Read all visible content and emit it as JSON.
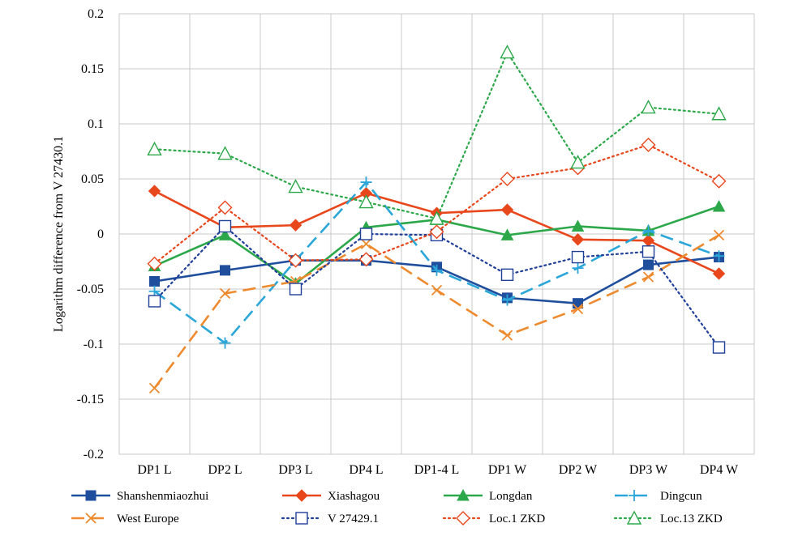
{
  "chart_data": {
    "type": "line",
    "title": "",
    "xlabel": "",
    "ylabel": "Logarithm difference from V 27430.1",
    "categories": [
      "DP1 L",
      "DP2 L",
      "DP3 L",
      "DP4 L",
      "DP1-4 L",
      "DP1 W",
      "DP2 W",
      "DP3 W",
      "DP4 W"
    ],
    "ylim": [
      -0.2,
      0.2
    ],
    "yticks": [
      -0.2,
      -0.15,
      -0.1,
      -0.05,
      0,
      0.05,
      0.1,
      0.15,
      0.2
    ],
    "ytick_labels": [
      "-0.2",
      "-0.15",
      "-0.1",
      "-0.05",
      "0",
      "0.05",
      "0.1",
      "0.15",
      "0.2"
    ],
    "grid": true,
    "legend_position": "bottom",
    "series": [
      {
        "name": "Shanshenmiaozhui",
        "color": "#1f4e9c",
        "dash": "solid",
        "marker": "square-filled",
        "values": [
          -0.043,
          -0.033,
          -0.024,
          -0.024,
          -0.03,
          -0.058,
          -0.063,
          -0.028,
          -0.021
        ]
      },
      {
        "name": "Xiashagou",
        "color": "#e8471c",
        "dash": "solid",
        "marker": "diamond-filled",
        "values": [
          0.039,
          0.006,
          0.008,
          0.037,
          0.019,
          0.022,
          -0.005,
          -0.006,
          -0.036
        ]
      },
      {
        "name": "Longdan",
        "color": "#2ca84a",
        "dash": "solid",
        "marker": "triangle-filled",
        "values": [
          -0.029,
          -0.001,
          -0.045,
          0.006,
          0.013,
          -0.001,
          0.007,
          0.003,
          0.025
        ]
      },
      {
        "name": "Dingcun",
        "color": "#2aa6d8",
        "dash": "longdash",
        "marker": "plus",
        "values": [
          -0.052,
          -0.099,
          -0.024,
          0.047,
          -0.033,
          -0.06,
          -0.031,
          0.003,
          -0.02
        ]
      },
      {
        "name": "West Europe",
        "color": "#ee8a2e",
        "dash": "longdash",
        "marker": "x",
        "values": [
          -0.14,
          -0.054,
          -0.043,
          -0.009,
          -0.051,
          -0.092,
          -0.068,
          -0.039,
          -0.001
        ]
      },
      {
        "name": "V 27429.1",
        "color": "#1f3f99",
        "dash": "dotted",
        "marker": "square-open",
        "values": [
          -0.061,
          0.007,
          -0.05,
          0.0,
          -0.001,
          -0.037,
          -0.021,
          -0.016,
          -0.103
        ]
      },
      {
        "name": "Loc.1 ZKD",
        "color": "#e8471c",
        "dash": "dotted",
        "marker": "diamond-open",
        "values": [
          -0.027,
          0.024,
          -0.024,
          -0.023,
          0.002,
          0.05,
          0.06,
          0.081,
          0.048
        ]
      },
      {
        "name": "Loc.13 ZKD",
        "color": "#2ca84a",
        "dash": "dotted",
        "marker": "triangle-open",
        "values": [
          0.077,
          0.073,
          0.043,
          0.029,
          0.014,
          0.165,
          0.065,
          0.115,
          0.109
        ]
      }
    ]
  }
}
